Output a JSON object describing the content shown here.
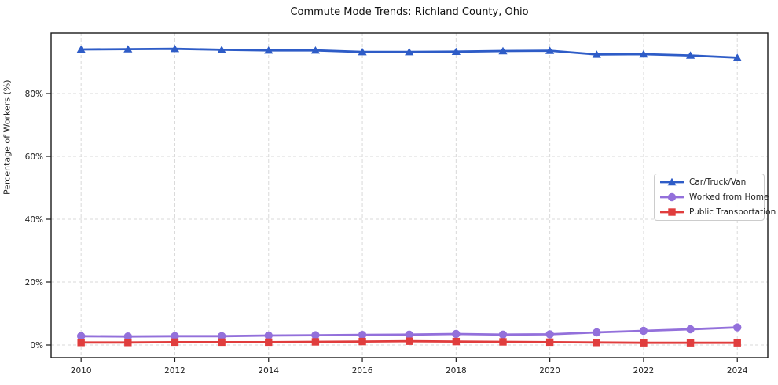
{
  "chart_data": {
    "type": "line",
    "title": "Commute Mode Trends: Richland County, Ohio",
    "xlabel": "",
    "ylabel": "Percentage of Workers (%)",
    "x": [
      2010,
      2011,
      2012,
      2013,
      2014,
      2015,
      2016,
      2017,
      2018,
      2019,
      2020,
      2021,
      2022,
      2023,
      2024
    ],
    "xtick_labels": [
      "2010",
      "2012",
      "2014",
      "2016",
      "2018",
      "2020",
      "2022",
      "2024"
    ],
    "xtick_values": [
      2010,
      2012,
      2014,
      2016,
      2018,
      2020,
      2022,
      2024
    ],
    "ytick_labels": [
      "0%",
      "20%",
      "40%",
      "60%",
      "80%"
    ],
    "ytick_values": [
      0,
      20,
      40,
      60,
      80
    ],
    "xlim": [
      2009.36,
      2024.65
    ],
    "ylim": [
      -4,
      99.25
    ],
    "grid": true,
    "grid_style": "dashed",
    "legend_position": "center-right",
    "series": [
      {
        "name": "Car/Truck/Van",
        "color": "#2e5cc7",
        "marker": "triangle",
        "values": [
          94.0,
          94.1,
          94.2,
          93.9,
          93.7,
          93.7,
          93.2,
          93.2,
          93.3,
          93.5,
          93.6,
          92.4,
          92.5,
          92.1,
          91.4
        ]
      },
      {
        "name": "Worked from Home",
        "color": "#9370db",
        "marker": "circle",
        "values": [
          2.8,
          2.7,
          2.8,
          2.8,
          3.0,
          3.1,
          3.2,
          3.3,
          3.5,
          3.3,
          3.4,
          4.0,
          4.5,
          5.0,
          5.6
        ]
      },
      {
        "name": "Public Transportation",
        "color": "#e03d3d",
        "marker": "square",
        "values": [
          0.8,
          0.8,
          0.9,
          0.9,
          0.9,
          1.0,
          1.1,
          1.2,
          1.1,
          1.0,
          0.9,
          0.8,
          0.7,
          0.7,
          0.7
        ]
      }
    ]
  }
}
